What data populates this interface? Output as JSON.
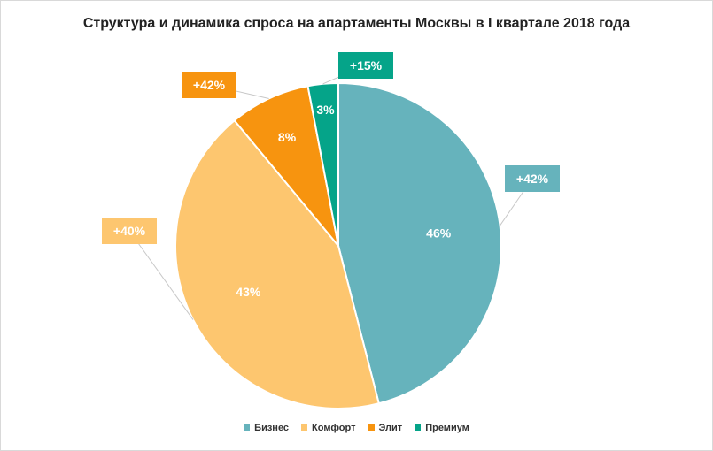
{
  "chart_data": {
    "type": "pie",
    "title": "Структура и динамика спроса  на апартаменты Москвы в I квартале 2018 года",
    "legend_position": "bottom",
    "slices": [
      {
        "name": "Бизнес",
        "value": 46,
        "label": "46%",
        "change": "+42%",
        "color": "#66b3bc"
      },
      {
        "name": "Комфорт",
        "value": 43,
        "label": "43%",
        "change": "+40%",
        "color": "#fdc66f"
      },
      {
        "name": "Элит",
        "value": 8,
        "label": "8%",
        "change": "+42%",
        "color": "#f7940f"
      },
      {
        "name": "Премиум",
        "value": 3,
        "label": "3%",
        "change": "+15%",
        "color": "#05a489"
      }
    ]
  }
}
